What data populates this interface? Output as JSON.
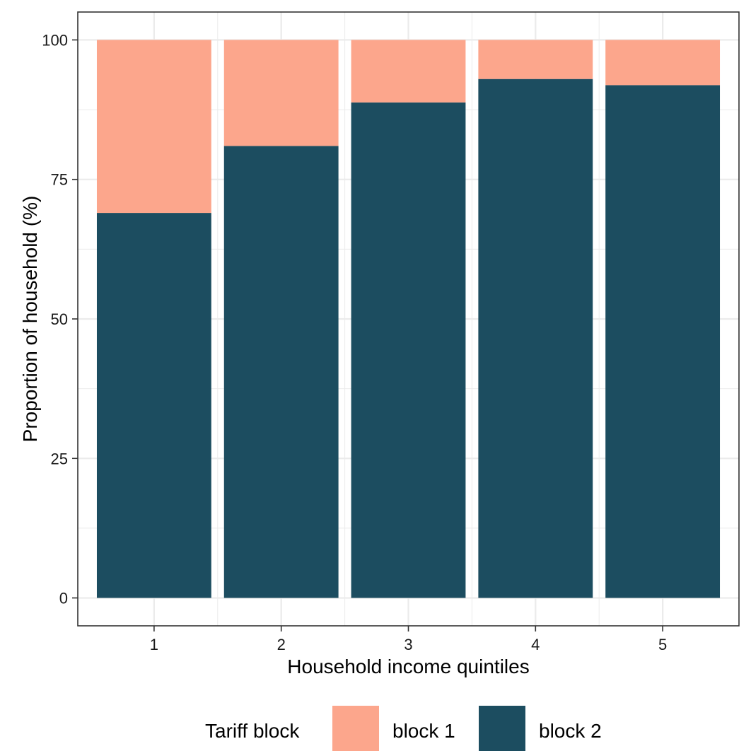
{
  "chart_data": {
    "type": "bar",
    "stacked": true,
    "categories": [
      "1",
      "2",
      "3",
      "4",
      "5"
    ],
    "series": [
      {
        "name": "block 1",
        "values": [
          31,
          19,
          11.2,
          7,
          8.1
        ],
        "color": "#FCA68C"
      },
      {
        "name": "block 2",
        "values": [
          69,
          81,
          88.8,
          93,
          91.9
        ],
        "color": "#1C4D60"
      }
    ],
    "title": "",
    "xlabel": "Household income quintiles",
    "ylabel": "Proportion of household (%)",
    "ylim": [
      -5,
      105
    ],
    "yticks": [
      0,
      25,
      50,
      75,
      100
    ],
    "yticks_labels": [
      "0",
      "25",
      "50",
      "75",
      "100"
    ],
    "grid": true,
    "legend": {
      "title": "Tariff block",
      "position": "bottom",
      "entries": [
        "block 1",
        "block 2"
      ]
    },
    "colors": {
      "panel_border": "#333333",
      "grid": "#EBEBEB",
      "block1": "#FCA68C",
      "block2": "#1C4D60"
    }
  }
}
